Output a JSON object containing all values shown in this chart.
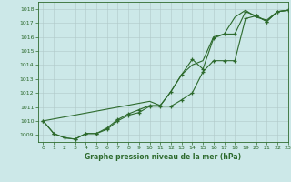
{
  "title": "Graphe pression niveau de la mer (hPa)",
  "background_color": "#cce8e8",
  "grid_color": "#b0c8c8",
  "line_color": "#2d6a2d",
  "xlim": [
    -0.5,
    23
  ],
  "ylim": [
    1008.5,
    1018.5
  ],
  "yticks": [
    1009,
    1010,
    1011,
    1012,
    1013,
    1014,
    1015,
    1016,
    1017,
    1018
  ],
  "xticks": [
    0,
    1,
    2,
    3,
    4,
    5,
    6,
    7,
    8,
    9,
    10,
    11,
    12,
    13,
    14,
    15,
    16,
    17,
    18,
    19,
    20,
    21,
    22,
    23
  ],
  "series1_x": [
    0,
    1,
    2,
    3,
    4,
    5,
    6,
    7,
    8,
    9,
    10,
    11,
    12,
    13,
    14,
    15,
    16,
    17,
    18,
    19,
    20,
    21,
    22,
    23
  ],
  "series1_y": [
    1010.0,
    1009.1,
    1008.8,
    1008.7,
    1009.1,
    1009.1,
    1009.4,
    1010.0,
    1010.4,
    1010.6,
    1011.05,
    1011.05,
    1011.05,
    1011.5,
    1012.0,
    1013.5,
    1014.3,
    1014.3,
    1014.3,
    1017.3,
    1017.5,
    1017.1,
    1017.8,
    1017.9
  ],
  "series2_x": [
    0,
    1,
    2,
    3,
    4,
    5,
    6,
    7,
    8,
    9,
    10,
    11,
    12,
    13,
    14,
    15,
    16,
    17,
    18,
    19,
    20,
    21,
    22,
    23
  ],
  "series2_y": [
    1010.0,
    1009.1,
    1008.8,
    1008.7,
    1009.1,
    1009.1,
    1009.5,
    1010.1,
    1010.5,
    1010.8,
    1011.1,
    1011.1,
    1012.1,
    1013.3,
    1014.4,
    1013.7,
    1015.9,
    1016.2,
    1016.2,
    1017.8,
    1017.5,
    1017.1,
    1017.8,
    1017.9
  ],
  "series3_x": [
    0,
    10,
    11,
    12,
    13,
    14,
    15,
    16,
    17,
    18,
    19,
    20,
    21,
    22,
    23
  ],
  "series3_y": [
    1010.0,
    1011.4,
    1011.1,
    1012.1,
    1013.3,
    1014.0,
    1014.3,
    1016.0,
    1016.2,
    1017.4,
    1017.9,
    1017.4,
    1017.2,
    1017.8,
    1017.9
  ]
}
